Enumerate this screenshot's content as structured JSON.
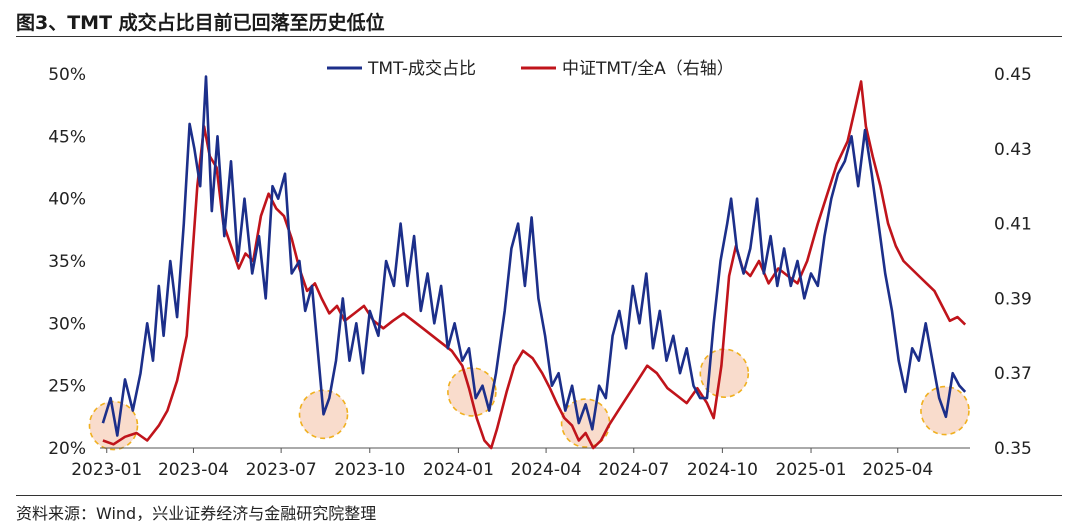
{
  "title": "图3、TMT 成交占比目前已回落至历史低位",
  "source": "资料来源：Wind，兴业证券经济与金融研究院整理",
  "colors": {
    "tmt": "#1c2f8a",
    "ratio": "#c0141b",
    "circle_fill": "#f7cdb6",
    "circle_stroke": "#f0b020"
  },
  "chart_data": {
    "type": "line",
    "x_tick_labels": [
      "2023-01",
      "2023-04",
      "2023-07",
      "2023-10",
      "2024-01",
      "2024-04",
      "2024-07",
      "2024-10",
      "2025-01",
      "2025-04"
    ],
    "x_range": [
      "2022-12-25",
      "2025-06-15"
    ],
    "y_left": {
      "range": [
        20,
        50
      ],
      "ticks": [
        "20%",
        "25%",
        "30%",
        "35%",
        "40%",
        "45%",
        "50%"
      ]
    },
    "y_right": {
      "range": [
        0.35,
        0.45
      ],
      "ticks": [
        "0.35",
        "0.37",
        "0.39",
        "0.41",
        "0.43",
        "0.45"
      ]
    },
    "legend_position": "top-center",
    "series": [
      {
        "name": "TMT-成交占比",
        "axis": "left",
        "points": [
          [
            "2022-12-28",
            22
          ],
          [
            "2023-01-05",
            24
          ],
          [
            "2023-01-12",
            21
          ],
          [
            "2023-01-20",
            25.5
          ],
          [
            "2023-01-28",
            23
          ],
          [
            "2023-02-05",
            26
          ],
          [
            "2023-02-12",
            30
          ],
          [
            "2023-02-18",
            27
          ],
          [
            "2023-02-24",
            33
          ],
          [
            "2023-03-01",
            29
          ],
          [
            "2023-03-08",
            35
          ],
          [
            "2023-03-15",
            30.5
          ],
          [
            "2023-03-22",
            38
          ],
          [
            "2023-03-28",
            46
          ],
          [
            "2023-04-02",
            44
          ],
          [
            "2023-04-08",
            41
          ],
          [
            "2023-04-14",
            49.8
          ],
          [
            "2023-04-20",
            39
          ],
          [
            "2023-04-26",
            45
          ],
          [
            "2023-05-03",
            37
          ],
          [
            "2023-05-10",
            43
          ],
          [
            "2023-05-17",
            35
          ],
          [
            "2023-05-24",
            40
          ],
          [
            "2023-06-01",
            34
          ],
          [
            "2023-06-08",
            37
          ],
          [
            "2023-06-15",
            32
          ],
          [
            "2023-06-22",
            41
          ],
          [
            "2023-06-28",
            40
          ],
          [
            "2023-07-05",
            42
          ],
          [
            "2023-07-12",
            34
          ],
          [
            "2023-07-20",
            35
          ],
          [
            "2023-07-26",
            31
          ],
          [
            "2023-08-02",
            33
          ],
          [
            "2023-08-09",
            27
          ],
          [
            "2023-08-14",
            22.7
          ],
          [
            "2023-08-20",
            24
          ],
          [
            "2023-08-27",
            27
          ],
          [
            "2023-09-03",
            32
          ],
          [
            "2023-09-10",
            27
          ],
          [
            "2023-09-17",
            30
          ],
          [
            "2023-09-24",
            26
          ],
          [
            "2023-10-01",
            31
          ],
          [
            "2023-10-10",
            29
          ],
          [
            "2023-10-18",
            35
          ],
          [
            "2023-10-26",
            33
          ],
          [
            "2023-11-02",
            38
          ],
          [
            "2023-11-09",
            33
          ],
          [
            "2023-11-16",
            37
          ],
          [
            "2023-11-23",
            31
          ],
          [
            "2023-11-30",
            34
          ],
          [
            "2023-12-07",
            30
          ],
          [
            "2023-12-14",
            33
          ],
          [
            "2023-12-21",
            28
          ],
          [
            "2023-12-28",
            30
          ],
          [
            "2024-01-05",
            27
          ],
          [
            "2024-01-12",
            28
          ],
          [
            "2024-01-19",
            24
          ],
          [
            "2024-01-26",
            25
          ],
          [
            "2024-02-02",
            23
          ],
          [
            "2024-02-09",
            26
          ],
          [
            "2024-02-18",
            31
          ],
          [
            "2024-02-25",
            36
          ],
          [
            "2024-03-03",
            38
          ],
          [
            "2024-03-10",
            33
          ],
          [
            "2024-03-17",
            38.5
          ],
          [
            "2024-03-24",
            32
          ],
          [
            "2024-03-31",
            29
          ],
          [
            "2024-04-07",
            25
          ],
          [
            "2024-04-14",
            26
          ],
          [
            "2024-04-21",
            23
          ],
          [
            "2024-04-28",
            25
          ],
          [
            "2024-05-05",
            22
          ],
          [
            "2024-05-12",
            23.5
          ],
          [
            "2024-05-19",
            21.5
          ],
          [
            "2024-05-26",
            25
          ],
          [
            "2024-06-02",
            24
          ],
          [
            "2024-06-09",
            29
          ],
          [
            "2024-06-16",
            31
          ],
          [
            "2024-06-23",
            28
          ],
          [
            "2024-06-30",
            33
          ],
          [
            "2024-07-07",
            30
          ],
          [
            "2024-07-14",
            34
          ],
          [
            "2024-07-21",
            28
          ],
          [
            "2024-07-28",
            31
          ],
          [
            "2024-08-04",
            27
          ],
          [
            "2024-08-11",
            29
          ],
          [
            "2024-08-18",
            26
          ],
          [
            "2024-08-25",
            28
          ],
          [
            "2024-09-01",
            25
          ],
          [
            "2024-09-08",
            24
          ],
          [
            "2024-09-15",
            24
          ],
          [
            "2024-09-22",
            30
          ],
          [
            "2024-09-29",
            35
          ],
          [
            "2024-10-06",
            38
          ],
          [
            "2024-10-10",
            40
          ],
          [
            "2024-10-16",
            36
          ],
          [
            "2024-10-23",
            34
          ],
          [
            "2024-10-30",
            36
          ],
          [
            "2024-11-06",
            40
          ],
          [
            "2024-11-13",
            34
          ],
          [
            "2024-11-20",
            37
          ],
          [
            "2024-11-27",
            33
          ],
          [
            "2024-12-04",
            36
          ],
          [
            "2024-12-11",
            33
          ],
          [
            "2024-12-18",
            35
          ],
          [
            "2024-12-25",
            32
          ],
          [
            "2025-01-01",
            34
          ],
          [
            "2025-01-08",
            33
          ],
          [
            "2025-01-15",
            37
          ],
          [
            "2025-01-22",
            40
          ],
          [
            "2025-01-29",
            42
          ],
          [
            "2025-02-05",
            43
          ],
          [
            "2025-02-12",
            45
          ],
          [
            "2025-02-19",
            41
          ],
          [
            "2025-02-26",
            45.5
          ],
          [
            "2025-03-05",
            42
          ],
          [
            "2025-03-12",
            38
          ],
          [
            "2025-03-19",
            34
          ],
          [
            "2025-03-26",
            31
          ],
          [
            "2025-04-02",
            27
          ],
          [
            "2025-04-09",
            24.5
          ],
          [
            "2025-04-16",
            28
          ],
          [
            "2025-04-23",
            27
          ],
          [
            "2025-04-30",
            30
          ],
          [
            "2025-05-07",
            27
          ],
          [
            "2025-05-14",
            24
          ],
          [
            "2025-05-21",
            22.5
          ],
          [
            "2025-05-28",
            26
          ],
          [
            "2025-06-04",
            25
          ],
          [
            "2025-06-10",
            24.5
          ]
        ]
      },
      {
        "name": "中证TMT/全A（右轴）",
        "axis": "right",
        "points": [
          [
            "2022-12-28",
            0.352
          ],
          [
            "2023-01-08",
            0.351
          ],
          [
            "2023-01-20",
            0.353
          ],
          [
            "2023-02-01",
            0.354
          ],
          [
            "2023-02-12",
            0.352
          ],
          [
            "2023-02-24",
            0.356
          ],
          [
            "2023-03-05",
            0.36
          ],
          [
            "2023-03-15",
            0.368
          ],
          [
            "2023-03-25",
            0.38
          ],
          [
            "2023-04-05",
            0.42
          ],
          [
            "2023-04-12",
            0.436
          ],
          [
            "2023-04-18",
            0.428
          ],
          [
            "2023-04-25",
            0.425
          ],
          [
            "2023-05-02",
            0.41
          ],
          [
            "2023-05-10",
            0.404
          ],
          [
            "2023-05-18",
            0.398
          ],
          [
            "2023-05-25",
            0.402
          ],
          [
            "2023-06-02",
            0.4
          ],
          [
            "2023-06-10",
            0.412
          ],
          [
            "2023-06-18",
            0.418
          ],
          [
            "2023-06-26",
            0.414
          ],
          [
            "2023-07-04",
            0.412
          ],
          [
            "2023-07-12",
            0.406
          ],
          [
            "2023-07-20",
            0.398
          ],
          [
            "2023-07-28",
            0.392
          ],
          [
            "2023-08-05",
            0.394
          ],
          [
            "2023-08-12",
            0.39
          ],
          [
            "2023-08-20",
            0.386
          ],
          [
            "2023-08-28",
            0.388
          ],
          [
            "2023-09-05",
            0.384
          ],
          [
            "2023-09-15",
            0.386
          ],
          [
            "2023-09-25",
            0.388
          ],
          [
            "2023-10-05",
            0.384
          ],
          [
            "2023-10-15",
            0.382
          ],
          [
            "2023-10-25",
            0.384
          ],
          [
            "2023-11-05",
            0.386
          ],
          [
            "2023-11-15",
            0.384
          ],
          [
            "2023-11-25",
            0.382
          ],
          [
            "2023-12-05",
            0.38
          ],
          [
            "2023-12-15",
            0.378
          ],
          [
            "2023-12-25",
            0.376
          ],
          [
            "2024-01-05",
            0.372
          ],
          [
            "2024-01-12",
            0.366
          ],
          [
            "2024-01-20",
            0.358
          ],
          [
            "2024-01-28",
            0.352
          ],
          [
            "2024-02-04",
            0.35
          ],
          [
            "2024-02-10",
            0.355
          ],
          [
            "2024-02-20",
            0.365
          ],
          [
            "2024-02-28",
            0.372
          ],
          [
            "2024-03-08",
            0.376
          ],
          [
            "2024-03-18",
            0.374
          ],
          [
            "2024-03-28",
            0.37
          ],
          [
            "2024-04-05",
            0.366
          ],
          [
            "2024-04-12",
            0.362
          ],
          [
            "2024-04-20",
            0.358
          ],
          [
            "2024-04-28",
            0.356
          ],
          [
            "2024-05-05",
            0.352
          ],
          [
            "2024-05-12",
            0.354
          ],
          [
            "2024-05-20",
            0.35
          ],
          [
            "2024-05-28",
            0.352
          ],
          [
            "2024-06-05",
            0.356
          ],
          [
            "2024-06-15",
            0.36
          ],
          [
            "2024-06-25",
            0.364
          ],
          [
            "2024-07-05",
            0.368
          ],
          [
            "2024-07-15",
            0.372
          ],
          [
            "2024-07-25",
            0.37
          ],
          [
            "2024-08-05",
            0.366
          ],
          [
            "2024-08-15",
            0.364
          ],
          [
            "2024-08-25",
            0.362
          ],
          [
            "2024-09-05",
            0.366
          ],
          [
            "2024-09-15",
            0.362
          ],
          [
            "2024-09-22",
            0.358
          ],
          [
            "2024-09-30",
            0.372
          ],
          [
            "2024-10-08",
            0.396
          ],
          [
            "2024-10-15",
            0.404
          ],
          [
            "2024-10-22",
            0.398
          ],
          [
            "2024-10-30",
            0.396
          ],
          [
            "2024-11-08",
            0.4
          ],
          [
            "2024-11-18",
            0.394
          ],
          [
            "2024-11-28",
            0.398
          ],
          [
            "2024-12-08",
            0.396
          ],
          [
            "2024-12-18",
            0.394
          ],
          [
            "2024-12-28",
            0.4
          ],
          [
            "2025-01-08",
            0.41
          ],
          [
            "2025-01-18",
            0.418
          ],
          [
            "2025-01-28",
            0.426
          ],
          [
            "2025-02-08",
            0.432
          ],
          [
            "2025-02-15",
            0.44
          ],
          [
            "2025-02-22",
            0.448
          ],
          [
            "2025-02-27",
            0.436
          ],
          [
            "2025-03-06",
            0.428
          ],
          [
            "2025-03-14",
            0.42
          ],
          [
            "2025-03-22",
            0.41
          ],
          [
            "2025-03-30",
            0.404
          ],
          [
            "2025-04-07",
            0.4
          ],
          [
            "2025-04-15",
            0.398
          ],
          [
            "2025-04-23",
            0.396
          ],
          [
            "2025-05-01",
            0.394
          ],
          [
            "2025-05-09",
            0.392
          ],
          [
            "2025-05-17",
            0.388
          ],
          [
            "2025-05-25",
            0.384
          ],
          [
            "2025-06-02",
            0.385
          ],
          [
            "2025-06-10",
            0.383
          ]
        ]
      }
    ],
    "highlight_circles": [
      {
        "date": "2023-01-08",
        "value": 21.8
      },
      {
        "date": "2023-08-14",
        "value": 22.7
      },
      {
        "date": "2024-01-15",
        "value": 24.5
      },
      {
        "date": "2024-05-12",
        "value": 22.0
      },
      {
        "date": "2024-10-03",
        "value": 26.0
      },
      {
        "date": "2025-05-20",
        "value": 23.0
      }
    ]
  }
}
